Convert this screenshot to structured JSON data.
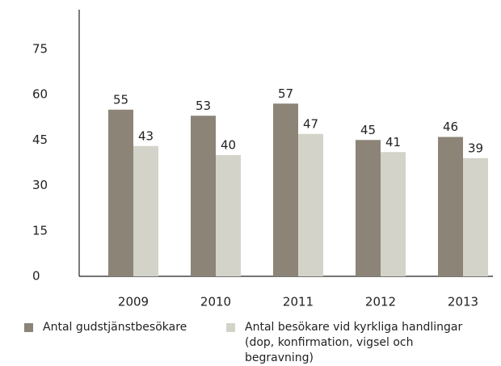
{
  "chart_data": {
    "type": "bar",
    "categories": [
      "2009",
      "2010",
      "2011",
      "2012",
      "2013"
    ],
    "series": [
      {
        "name": "Antal gudstjänstbesökare",
        "color": "#8c8477",
        "values": [
          55,
          53,
          57,
          45,
          46
        ]
      },
      {
        "name": "Antal besökare vid kyrkliga handlingar (dop, konfirmation, vigsel och begravning)",
        "color": "#d4d3c9",
        "values": [
          43,
          40,
          47,
          41,
          39
        ]
      }
    ],
    "ylim": [
      0,
      88
    ],
    "yticks": [
      0,
      15,
      30,
      45,
      60,
      75
    ],
    "grid": false,
    "legend": "bottom"
  }
}
